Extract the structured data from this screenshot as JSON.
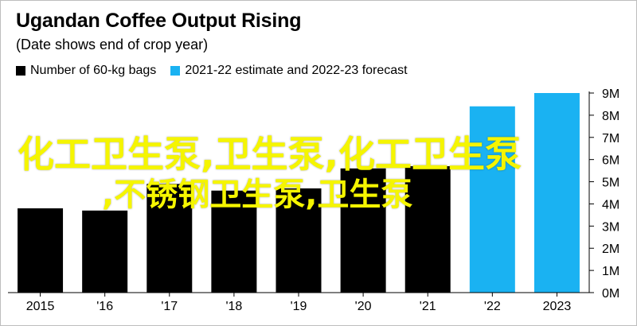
{
  "header": {
    "title": "Ugandan Coffee Output Rising",
    "subtitle": "(Date shows end of crop year)"
  },
  "legend": [
    {
      "label": "Number of 60-kg bags",
      "color": "#000000"
    },
    {
      "label": "2021-22 estimate and 2022-23 forecast",
      "color": "#1ab2f2"
    }
  ],
  "chart_data": {
    "type": "bar",
    "title": "Ugandan Coffee Output Rising",
    "subtitle": "(Date shows end of crop year)",
    "categories": [
      "2015",
      "'16",
      "'17",
      "'18",
      "'19",
      "'20",
      "'21",
      "'22",
      "2023"
    ],
    "series": [
      {
        "name": "Number of 60-kg bags",
        "values": [
          3.8,
          3.7,
          4.9,
          4.6,
          4.7,
          5.6,
          5.7,
          null,
          null
        ],
        "color": "#000000"
      },
      {
        "name": "2021-22 estimate and 2022-23 forecast",
        "values": [
          null,
          null,
          null,
          null,
          null,
          null,
          null,
          8.4,
          9.0
        ],
        "color": "#1ab2f2"
      }
    ],
    "ylim": [
      0,
      9
    ],
    "yticks": [
      "0M",
      "1M",
      "2M",
      "3M",
      "4M",
      "5M",
      "6M",
      "7M",
      "8M",
      "9M"
    ],
    "y_axis_position": "right",
    "grid": false,
    "legend_position": "top-left"
  },
  "overlay": {
    "line1": "化工卫生泵,卫生泵,化工卫生泵",
    "line2": ",不锈钢卫生泵,卫生泵"
  }
}
